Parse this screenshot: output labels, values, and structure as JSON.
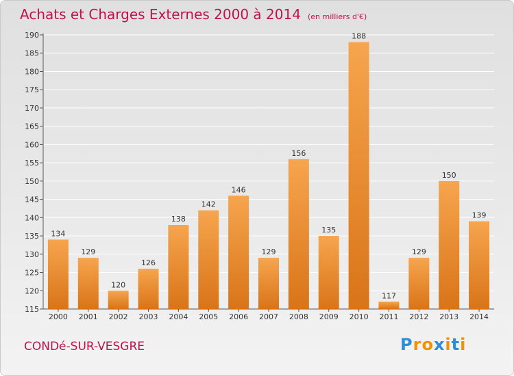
{
  "header": {
    "title": "Achats et Charges Externes 2000 à 2014",
    "unit": "(en milliers d'€)"
  },
  "footer": {
    "town": "CONDé-SUR-VESGRE",
    "brand_letters": [
      "P",
      "r",
      "o",
      "x",
      "i",
      "t",
      "i"
    ],
    "brand_colors": [
      "#2a8fd6",
      "#f39200",
      "#f39200",
      "#2a8fd6",
      "#f39200",
      "#2a8fd6",
      "#f39200"
    ]
  },
  "colors": {
    "bar_light": "#f6a54e",
    "bar_dark": "#d97418",
    "axis": "#555555",
    "grid": "#ffffff",
    "title": "#c0114c"
  },
  "chart_data": {
    "type": "bar",
    "title": "Achats et Charges Externes 2000 à 2014",
    "subtitle": "(en milliers d'€)",
    "xlabel": "",
    "ylabel": "",
    "categories": [
      "2000",
      "2001",
      "2002",
      "2003",
      "2004",
      "2005",
      "2006",
      "2007",
      "2008",
      "2009",
      "2010",
      "2011",
      "2012",
      "2013",
      "2014"
    ],
    "values": [
      134,
      129,
      120,
      126,
      138,
      142,
      146,
      129,
      156,
      135,
      188,
      117,
      129,
      150,
      139
    ],
    "ylim": [
      115,
      190
    ],
    "yticks": [
      115,
      120,
      125,
      130,
      135,
      140,
      145,
      150,
      155,
      160,
      165,
      170,
      175,
      180,
      185,
      190
    ],
    "grid": true,
    "legend": "none"
  }
}
